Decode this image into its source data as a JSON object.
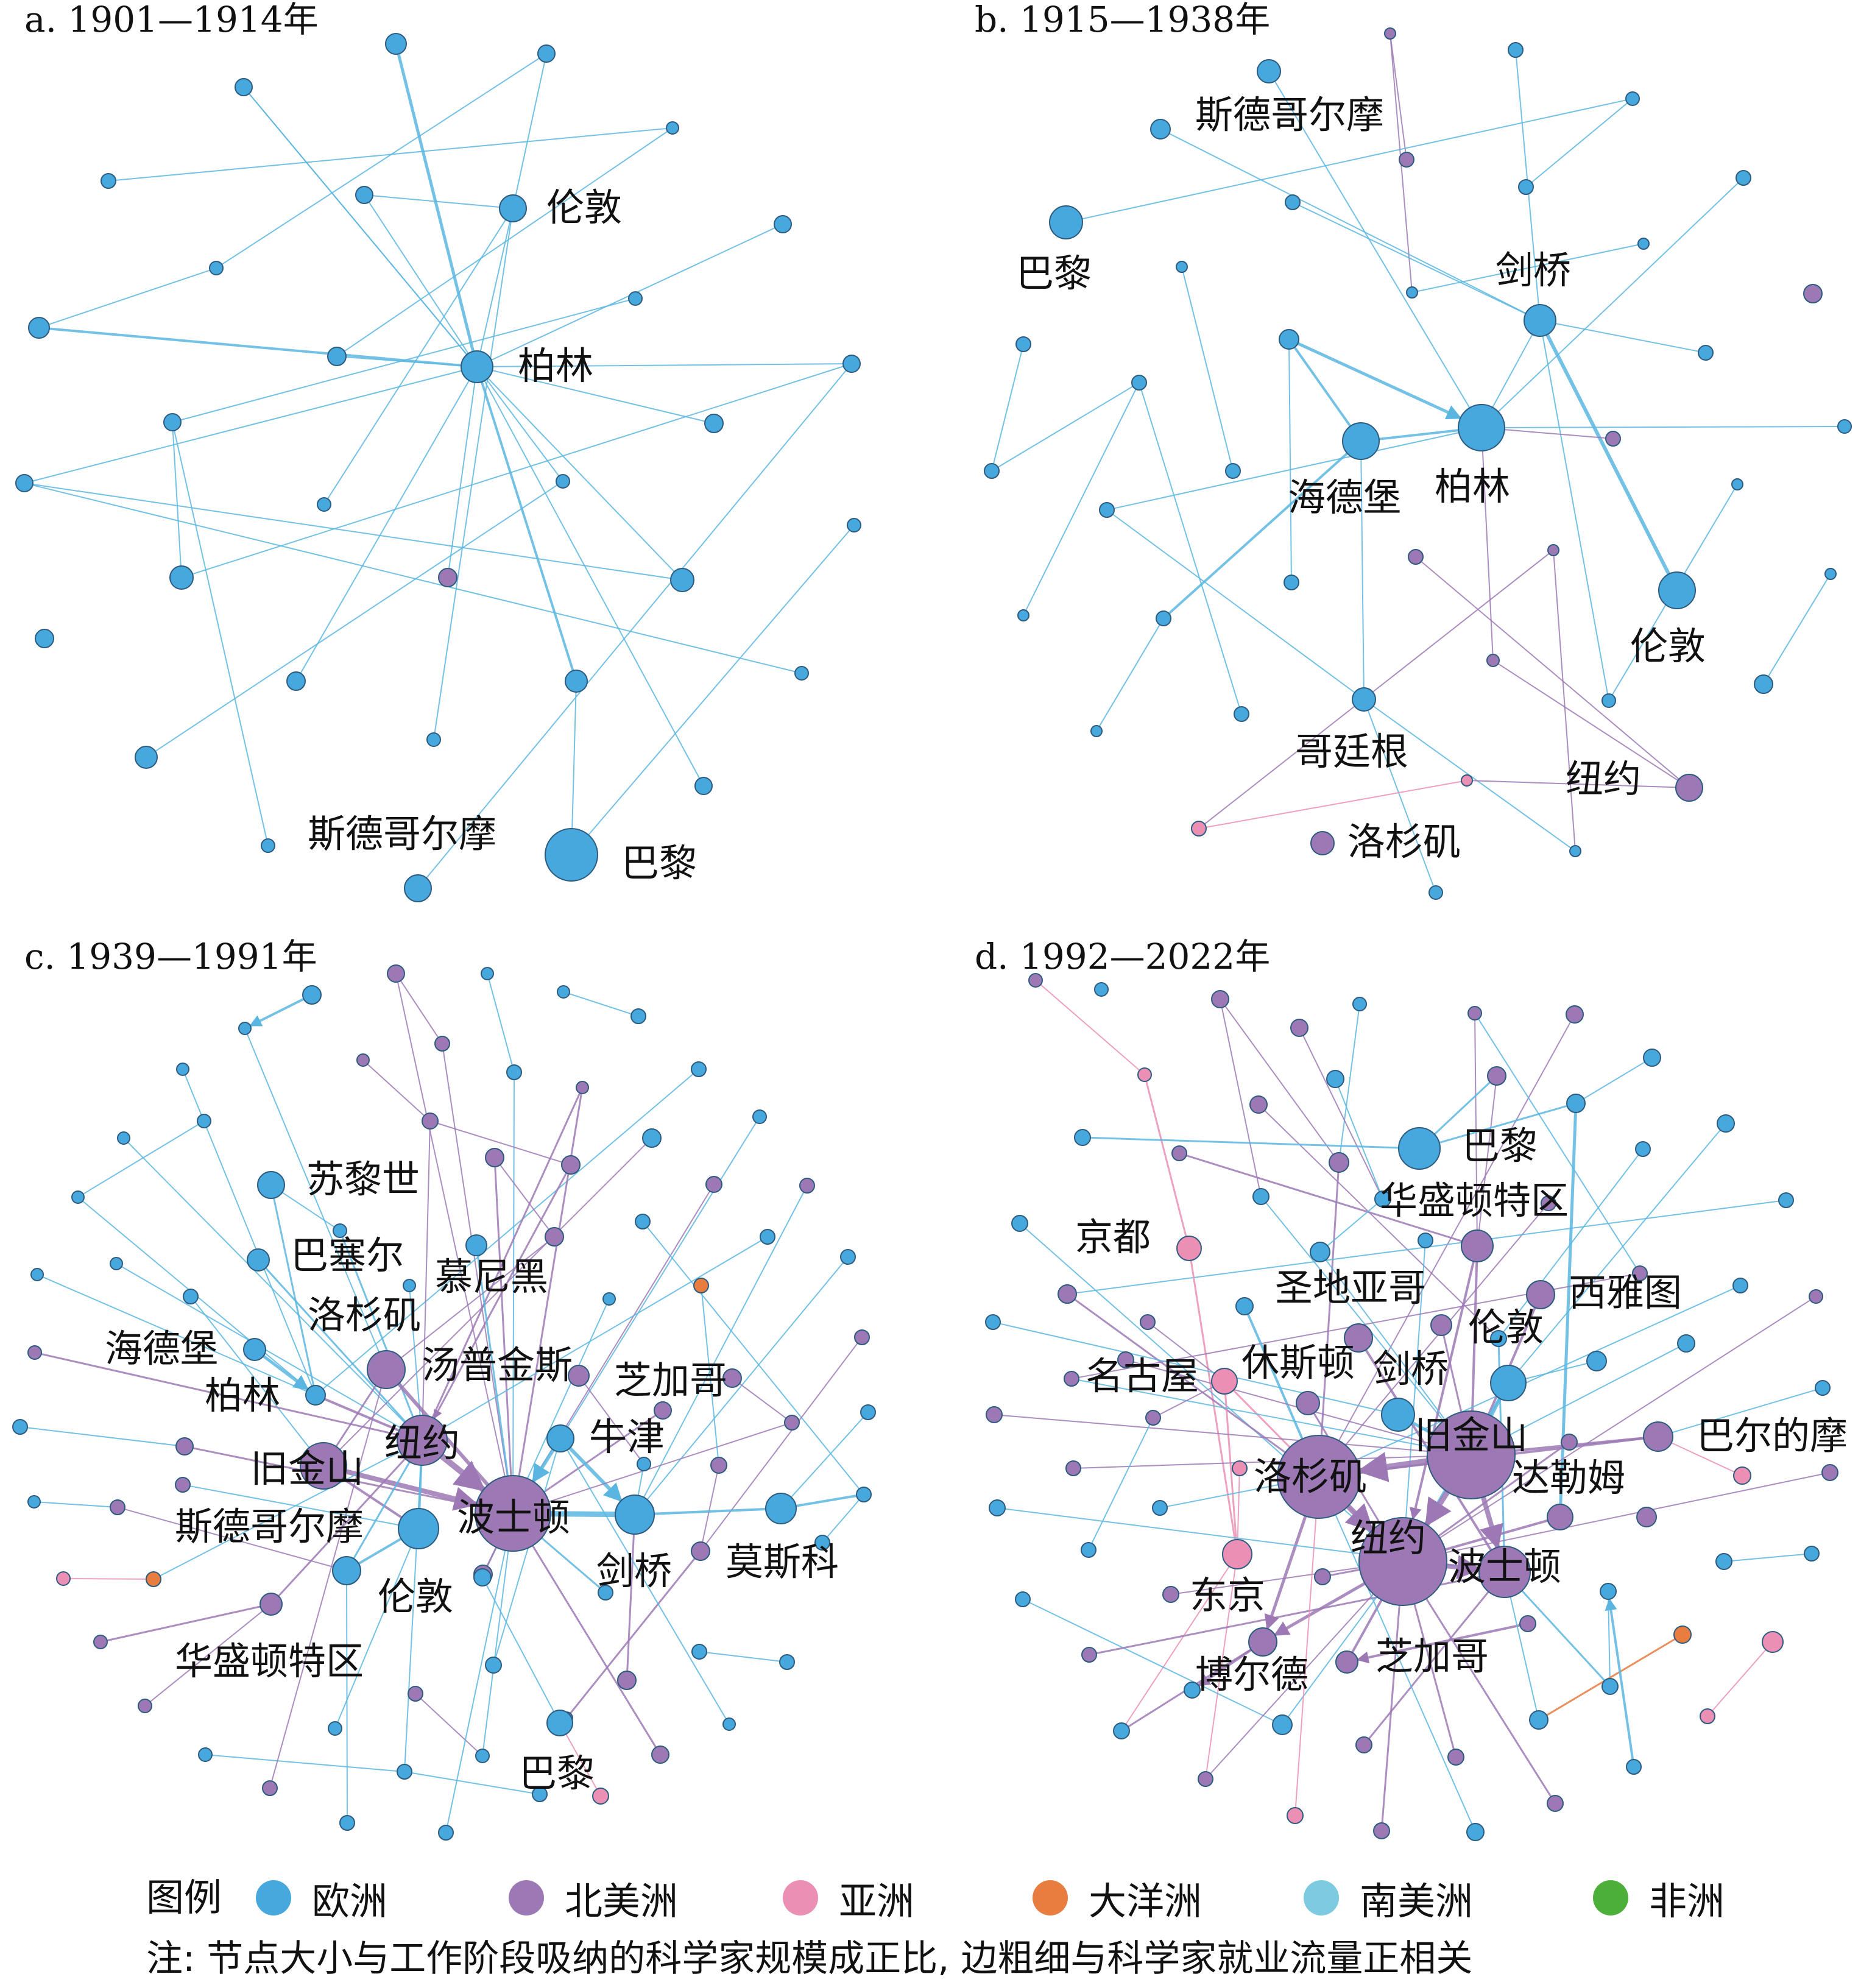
{
  "colors": {
    "europe": "#46a8dc",
    "north_america": "#9c79b5",
    "asia": "#eb8fb5",
    "oceania": "#e87d40",
    "south_america": "#7ccbe0",
    "africa": "#4caf3a",
    "edge_default": "#5ab6e0",
    "node_stroke": "#2d5b80"
  },
  "panels": [
    {
      "id": "a",
      "title": "a. 1901—1914年",
      "labels": [
        {
          "text": "伦敦",
          "node": "伦敦"
        },
        {
          "text": "柏林",
          "node": "柏林"
        },
        {
          "text": "斯德哥尔摩",
          "node": "斯德哥尔摩"
        },
        {
          "text": "巴黎",
          "node": "巴黎"
        }
      ]
    },
    {
      "id": "b",
      "title": "b. 1915—1938年",
      "labels": [
        {
          "text": "斯德哥尔摩",
          "node": "斯德哥尔摩"
        },
        {
          "text": "巴黎",
          "node": "巴黎"
        },
        {
          "text": "剑桥",
          "node": "剑桥"
        },
        {
          "text": "海德堡",
          "node": "海德堡"
        },
        {
          "text": "柏林",
          "node": "柏林"
        },
        {
          "text": "伦敦",
          "node": "伦敦"
        },
        {
          "text": "哥廷根",
          "node": "哥廷根"
        },
        {
          "text": "纽约",
          "node": "纽约"
        },
        {
          "text": "洛杉矶",
          "node": "洛杉矶"
        }
      ]
    },
    {
      "id": "c",
      "title": "c. 1939—1991年",
      "labels": [
        {
          "text": "苏黎世",
          "node": "苏黎世"
        },
        {
          "text": "巴塞尔",
          "node": "巴塞尔"
        },
        {
          "text": "慕尼黑",
          "node": "慕尼黑"
        },
        {
          "text": "洛杉矶",
          "node": "洛杉矶"
        },
        {
          "text": "海德堡",
          "node": "海德堡"
        },
        {
          "text": "汤普金斯",
          "node": "汤普金斯"
        },
        {
          "text": "芝加哥",
          "node": "芝加哥"
        },
        {
          "text": "柏林",
          "node": "柏林"
        },
        {
          "text": "纽约",
          "node": "纽约"
        },
        {
          "text": "牛津",
          "node": "牛津"
        },
        {
          "text": "旧金山",
          "node": "旧金山"
        },
        {
          "text": "波士顿",
          "node": "波士顿"
        },
        {
          "text": "斯德哥尔摩",
          "node": "斯德哥尔摩"
        },
        {
          "text": "莫斯科",
          "node": "莫斯科"
        },
        {
          "text": "剑桥",
          "node": "剑桥"
        },
        {
          "text": "伦敦",
          "node": "伦敦"
        },
        {
          "text": "华盛顿特区",
          "node": "华盛顿特区"
        },
        {
          "text": "巴黎",
          "node": "巴黎"
        }
      ]
    },
    {
      "id": "d",
      "title": "d. 1992—2022年",
      "labels": [
        {
          "text": "巴黎",
          "node": "巴黎"
        },
        {
          "text": "华盛顿特区",
          "node": "华盛顿特区"
        },
        {
          "text": "京都",
          "node": "京都"
        },
        {
          "text": "圣地亚哥",
          "node": "圣地亚哥"
        },
        {
          "text": "西雅图",
          "node": "西雅图"
        },
        {
          "text": "伦敦",
          "node": "伦敦"
        },
        {
          "text": "休斯顿",
          "node": "休斯顿"
        },
        {
          "text": "剑桥",
          "node": "剑桥"
        },
        {
          "text": "名古屋",
          "node": "名古屋"
        },
        {
          "text": "旧金山",
          "node": "旧金山"
        },
        {
          "text": "巴尔的摩",
          "node": "巴尔的摩"
        },
        {
          "text": "洛杉矶",
          "node": "洛杉矶"
        },
        {
          "text": "达勒姆",
          "node": "达勒姆"
        },
        {
          "text": "纽约",
          "node": "纽约"
        },
        {
          "text": "波士顿",
          "node": "波士顿"
        },
        {
          "text": "东京",
          "node": "东京"
        },
        {
          "text": "博尔德",
          "node": "博尔德"
        },
        {
          "text": "芝加哥",
          "node": "芝加哥"
        }
      ]
    }
  ],
  "legend": {
    "title": "图例",
    "items": [
      {
        "label": "欧洲",
        "color_key": "europe"
      },
      {
        "label": "北美洲",
        "color_key": "north_america"
      },
      {
        "label": "亚洲",
        "color_key": "asia"
      },
      {
        "label": "大洋洲",
        "color_key": "oceania"
      },
      {
        "label": "南美洲",
        "color_key": "south_america"
      },
      {
        "label": "非洲",
        "color_key": "africa"
      }
    ]
  },
  "note": "注: 节点大小与工作阶段吸纳的科学家规模成正比, 边粗细与科学家就业流量正相关"
}
